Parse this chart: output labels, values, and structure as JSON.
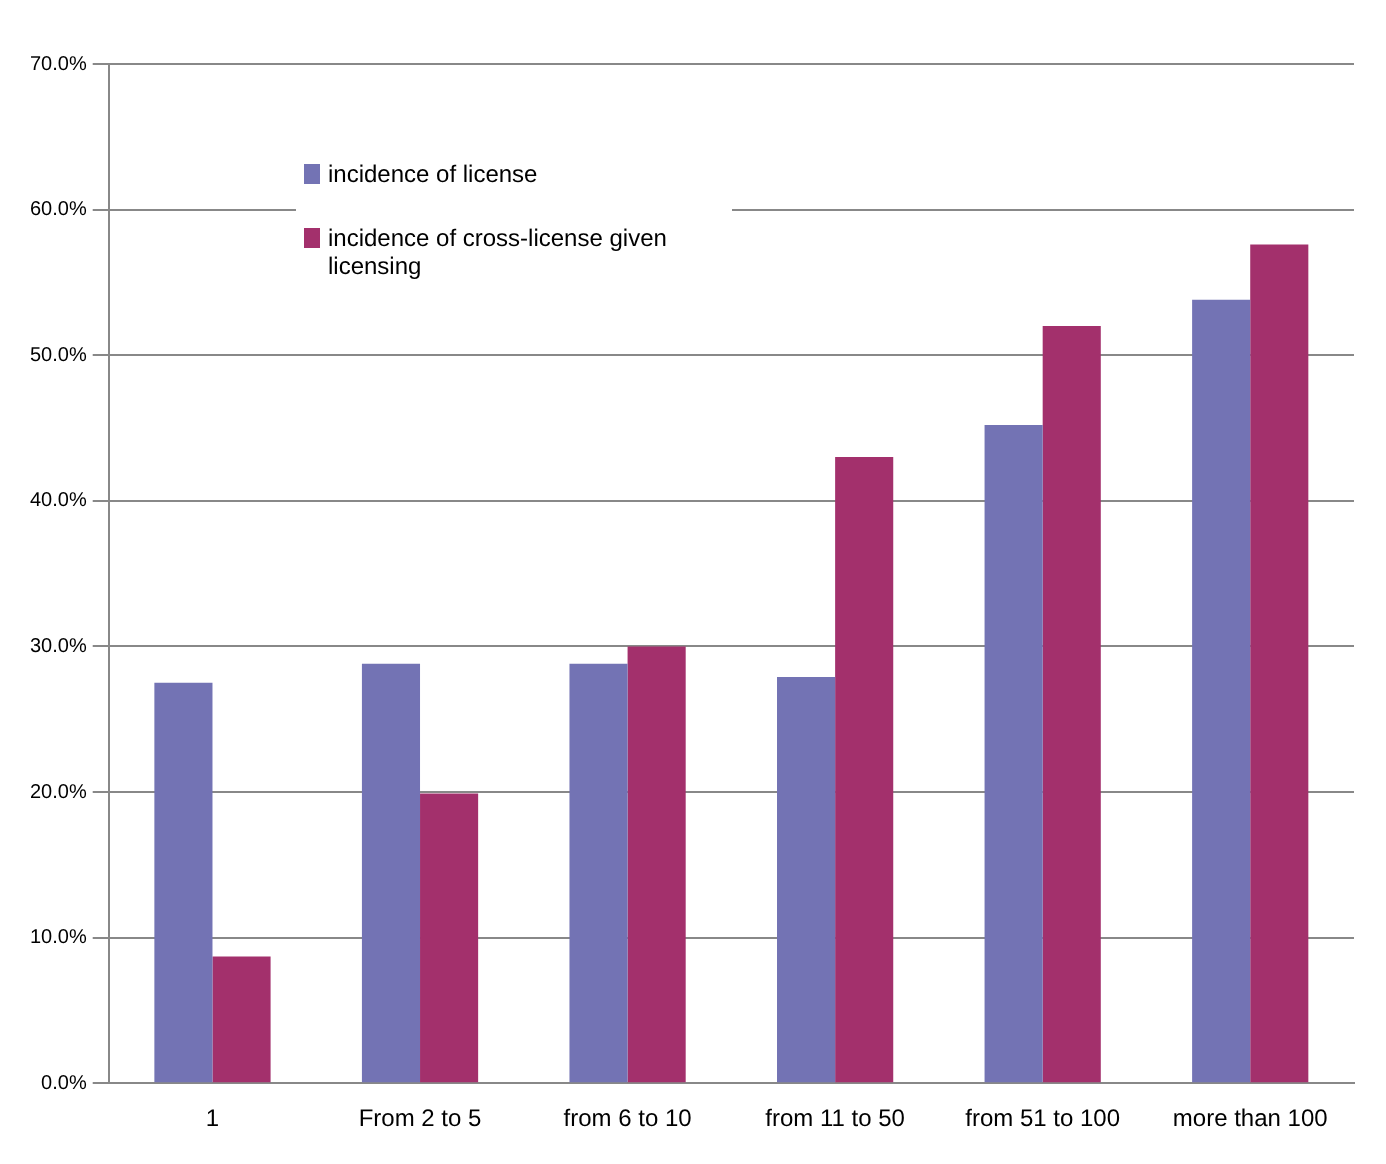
{
  "chart_data": {
    "type": "bar",
    "categories": [
      "1",
      "From 2 to 5",
      "from 6 to 10",
      "from 11 to 50",
      "from 51 to 100",
      "more than 100"
    ],
    "series": [
      {
        "name": "incidence of license",
        "color": "#7373b4",
        "values": [
          27.5,
          28.8,
          28.8,
          27.9,
          45.2,
          53.8
        ]
      },
      {
        "name": "incidence of cross-license given licensing",
        "color": "#a3306c",
        "values": [
          8.7,
          19.9,
          30.0,
          43.0,
          52.0,
          57.6
        ]
      }
    ],
    "ylim": [
      0,
      70
    ],
    "yticks": [
      {
        "value": 0,
        "label": "0.0%"
      },
      {
        "value": 10,
        "label": "10.0%"
      },
      {
        "value": 20,
        "label": "20.0%"
      },
      {
        "value": 30,
        "label": "30.0%"
      },
      {
        "value": 40,
        "label": "40.0%"
      },
      {
        "value": 50,
        "label": "50.0%"
      },
      {
        "value": 60,
        "label": "60.0%"
      },
      {
        "value": 70,
        "label": "70.0%"
      }
    ],
    "grid": "y",
    "legend": "top left"
  }
}
